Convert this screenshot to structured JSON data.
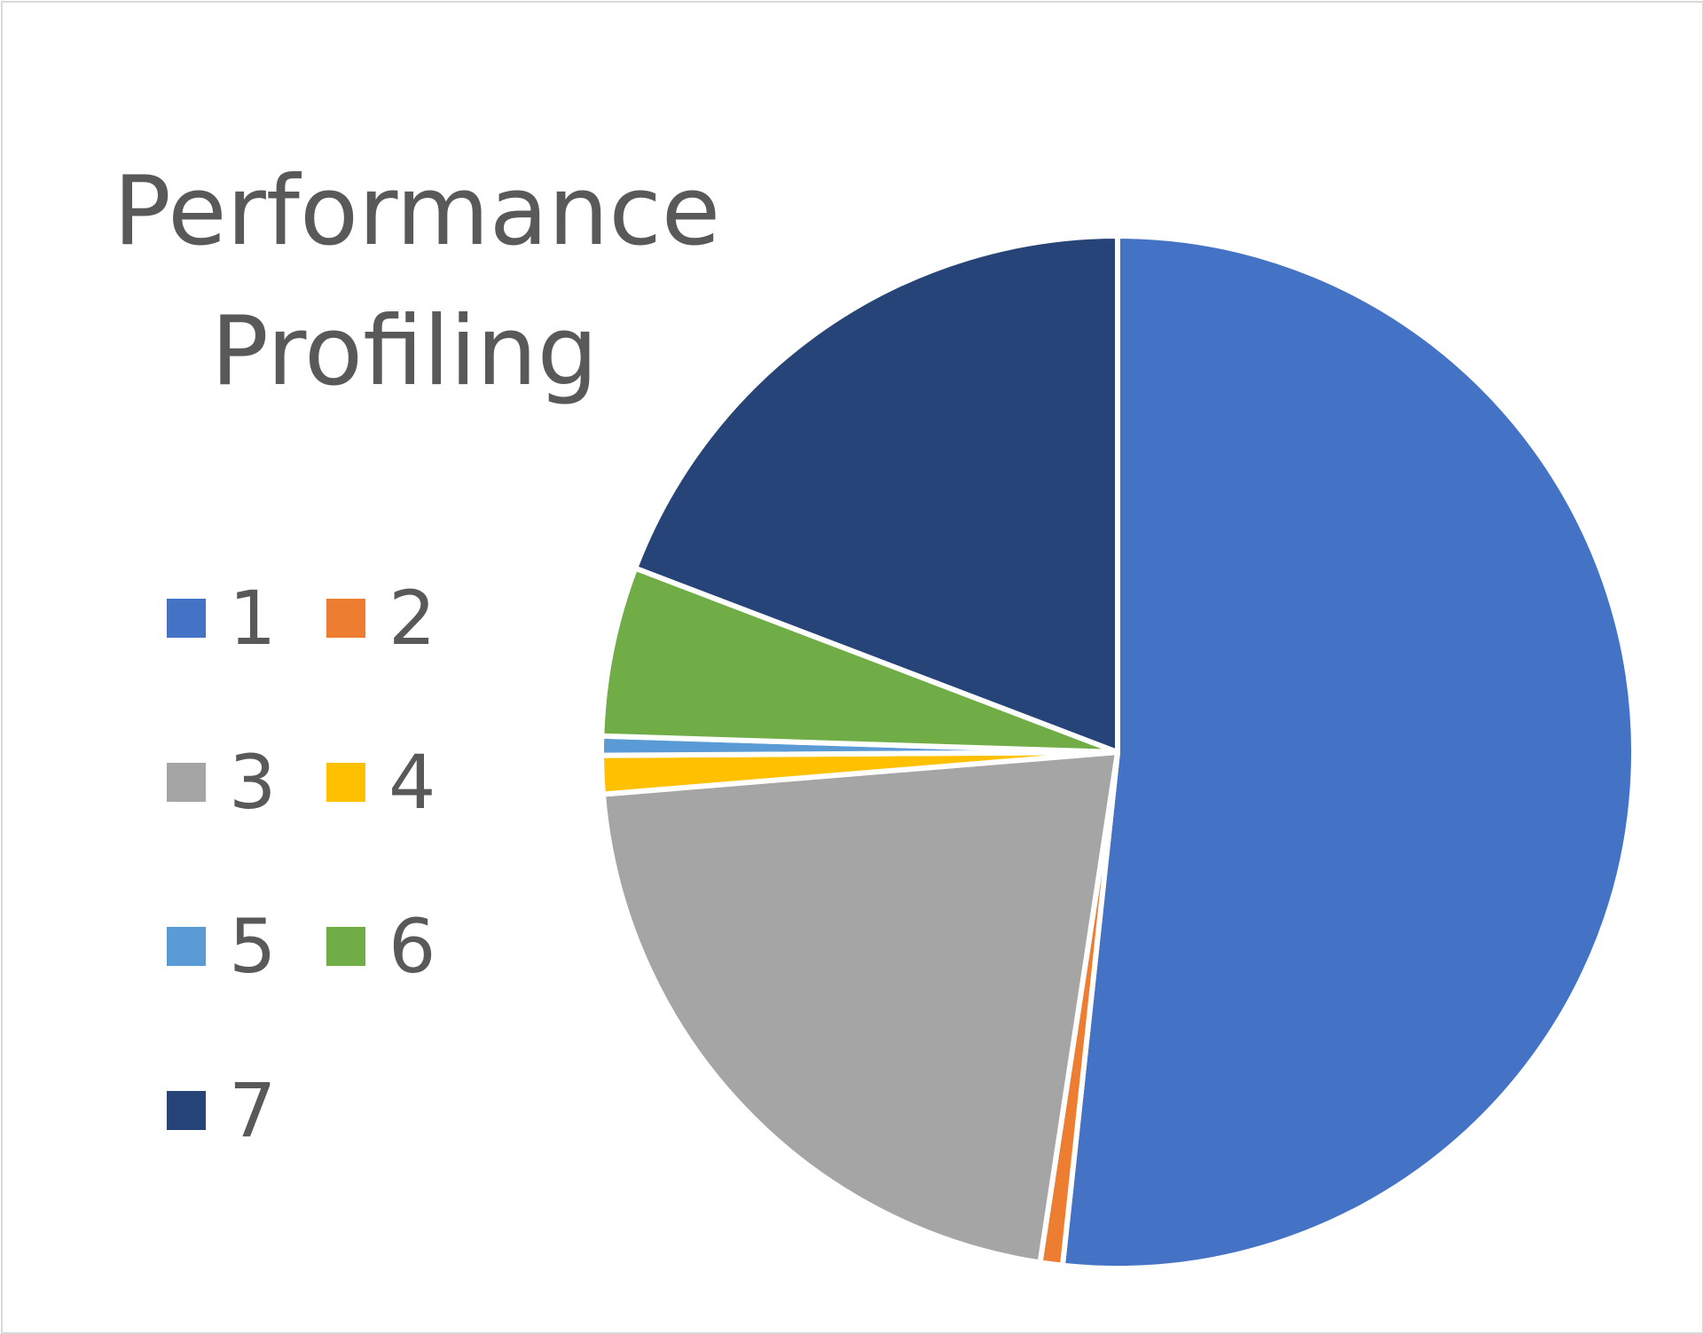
{
  "chart_data": {
    "type": "pie",
    "title": "Performance Profiling",
    "categories": [
      "1",
      "2",
      "3",
      "4",
      "5",
      "6",
      "7"
    ],
    "values": [
      51.7,
      0.7,
      21.3,
      1.2,
      0.6,
      5.3,
      19.2
    ],
    "colors": [
      "#4472C4",
      "#ED7D31",
      "#A5A5A5",
      "#FFC000",
      "#5B9BD5",
      "#70AD47",
      "#264478"
    ],
    "start_angle_deg": 0,
    "direction": "clockwise",
    "legend_position": "left"
  }
}
